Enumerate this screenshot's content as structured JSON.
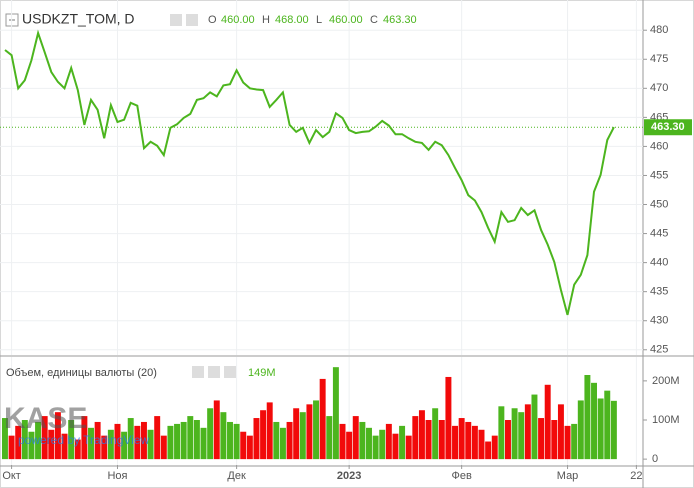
{
  "chart_data": [
    {
      "type": "line",
      "title": "USDKZT_TOM, D",
      "color": "#4cb51e",
      "ohlc": [
        {
          "label": "O",
          "value": "460.00"
        },
        {
          "label": "H",
          "value": "468.00"
        },
        {
          "label": "L",
          "value": "460.00"
        },
        {
          "label": "C",
          "value": "463.30"
        }
      ],
      "last_label": "463.30",
      "values": [
        476.6,
        475.7,
        470.0,
        471.4,
        474.8,
        479.5,
        476.2,
        472.8,
        471.1,
        470.0,
        473.5,
        469.7,
        463.7,
        468.0,
        466.3,
        461.4,
        467.1,
        464.2,
        464.6,
        467.5,
        467.0,
        459.7,
        460.8,
        460.1,
        458.5,
        463.2,
        463.8,
        464.9,
        465.6,
        468.0,
        468.3,
        469.3,
        468.6,
        470.5,
        470.7,
        473.1,
        471.0,
        470.0,
        469.8,
        469.7,
        466.8,
        468.0,
        469.3,
        463.7,
        462.5,
        463.2,
        460.6,
        462.8,
        461.6,
        462.5,
        465.7,
        464.9,
        462.8,
        462.3,
        462.5,
        462.6,
        463.4,
        464.4,
        463.6,
        462.1,
        462.1,
        461.4,
        460.8,
        460.6,
        459.4,
        460.8,
        460.2,
        458.5,
        456.3,
        454.2,
        451.6,
        450.7,
        448.7,
        446.0,
        443.6,
        448.7,
        447.0,
        447.3,
        449.4,
        448.2,
        449.0,
        445.6,
        443.1,
        440.1,
        435.3,
        431.0,
        436.2,
        437.9,
        441.3,
        452.2,
        455.1,
        461.1,
        463.3
      ],
      "ylim": [
        424.1,
        485.2
      ],
      "yticks": [
        425,
        430,
        435,
        440,
        445,
        450,
        455,
        460,
        465,
        470,
        475,
        480
      ],
      "watermark": "KASE",
      "watermark_sub": "powered by TradingView"
    },
    {
      "type": "bar",
      "title": "Объем, единицы валюты (20)",
      "up_color": "#4cb51e",
      "down_color": "#f20a0a",
      "legend_value": "149M",
      "values": [
        105,
        60,
        85,
        100,
        70,
        95,
        110,
        75,
        120,
        65,
        100,
        50,
        110,
        80,
        95,
        60,
        75,
        90,
        70,
        105,
        85,
        95,
        75,
        110,
        60,
        85,
        90,
        95,
        110,
        100,
        80,
        130,
        150,
        120,
        95,
        90,
        70,
        60,
        105,
        125,
        145,
        95,
        80,
        95,
        130,
        120,
        140,
        150,
        205,
        110,
        235,
        90,
        70,
        110,
        95,
        80,
        60,
        75,
        90,
        65,
        85,
        60,
        110,
        125,
        100,
        130,
        100,
        210,
        85,
        105,
        95,
        85,
        75,
        45,
        60,
        135,
        100,
        130,
        120,
        140,
        165,
        105,
        190,
        100,
        140,
        85,
        90,
        150,
        215,
        195,
        155,
        175,
        149
      ],
      "ylim": [
        -15,
        261
      ],
      "yticks": [
        {
          "value": 0,
          "label": "0"
        },
        {
          "value": 100,
          "label": "100M"
        },
        {
          "value": 200,
          "label": "200M"
        }
      ],
      "xlim": [
        -0.75,
        96.4
      ],
      "xticks": [
        {
          "value": 1,
          "label": "Окт"
        },
        {
          "value": 17,
          "label": "Ноя"
        },
        {
          "value": 35,
          "label": "Дек"
        },
        {
          "value": 52,
          "label": "2023"
        },
        {
          "value": 69,
          "label": "Фев"
        },
        {
          "value": 85,
          "label": "Мар"
        },
        {
          "value": 95.4,
          "label": "22"
        }
      ]
    }
  ]
}
